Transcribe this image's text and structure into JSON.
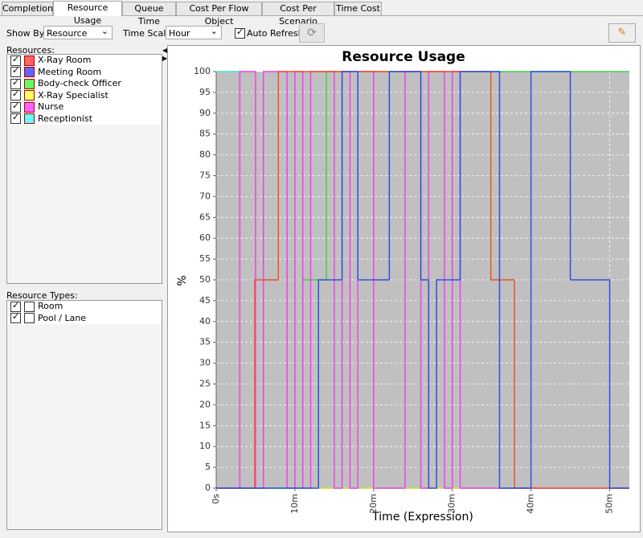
{
  "tabs": [
    "Completion",
    "Resource Usage",
    "Queue Time",
    "Cost Per Flow Object",
    "Cost Per Scenario",
    "Time Cost"
  ],
  "active_tab": 1,
  "toolbar": {
    "show_by_label": "Show By:",
    "show_by_value": "Resource",
    "time_scale_label": "Time Scale:",
    "time_scale_value": "Hour",
    "auto_refresh_label": "Auto Refresh",
    "auto_refresh_checked": true
  },
  "resources": {
    "label": "Resources:",
    "items": [
      {
        "name": "X-Ray Room",
        "color": "#ff6464",
        "checked": true
      },
      {
        "name": "Meeting Room",
        "color": "#6464ff",
        "checked": true
      },
      {
        "name": "Body-check Officer",
        "color": "#64ff64",
        "checked": true
      },
      {
        "name": "X-Ray Specialist",
        "color": "#ffff64",
        "checked": true
      },
      {
        "name": "Nurse",
        "color": "#ff64ff",
        "checked": true
      },
      {
        "name": "Receptionist",
        "color": "#64ffff",
        "checked": true
      }
    ]
  },
  "resource_types": {
    "label": "Resource Types:",
    "items": [
      {
        "name": "Room",
        "checked": true
      },
      {
        "name": "Pool / Lane",
        "checked": true
      }
    ]
  },
  "chart_data": {
    "type": "line",
    "title": "Resource Usage",
    "x_label": "Time (Expression)",
    "y_label": "%",
    "xlim": [
      0,
      52.5
    ],
    "ylim": [
      0,
      100
    ],
    "xticks": [
      {
        "value": 0,
        "label": "0s"
      },
      {
        "value": 10,
        "label": "10m"
      },
      {
        "value": 20,
        "label": "20m"
      },
      {
        "value": 30,
        "label": "30m"
      },
      {
        "value": 40,
        "label": "40m"
      },
      {
        "value": 50,
        "label": "50m"
      }
    ],
    "yticks": [
      0,
      5,
      10,
      15,
      20,
      25,
      30,
      35,
      40,
      45,
      50,
      55,
      60,
      65,
      70,
      75,
      80,
      85,
      90,
      95,
      100
    ],
    "grid": true,
    "series": [
      {
        "name": "Receptionist",
        "color": "#40e0e0",
        "x": [
          0,
          3,
          3,
          52.5
        ],
        "values": [
          100,
          100,
          0,
          0
        ]
      },
      {
        "name": "X-Ray Specialist",
        "color": "#e0e030",
        "x": [
          0,
          52.5
        ],
        "values": [
          0,
          0
        ]
      },
      {
        "name": "Body-check Officer",
        "color": "#40d040",
        "x": [
          0,
          11,
          11,
          14,
          14,
          52.5
        ],
        "values": [
          0,
          0,
          50,
          50,
          100,
          100
        ]
      },
      {
        "name": "Nurse",
        "color": "#f040f0",
        "x": [
          0,
          3,
          3,
          5,
          5,
          6,
          6,
          9,
          9,
          10,
          10,
          11,
          11,
          12,
          12,
          15,
          15,
          16,
          16,
          17,
          17,
          18,
          18,
          20,
          20,
          24,
          24,
          26,
          26,
          27,
          27,
          29,
          29,
          30,
          30,
          31,
          31,
          52.5
        ],
        "values": [
          0,
          0,
          100,
          100,
          0,
          0,
          100,
          100,
          0,
          0,
          100,
          100,
          0,
          0,
          100,
          100,
          0,
          0,
          100,
          100,
          0,
          0,
          100,
          100,
          0,
          0,
          100,
          100,
          0,
          0,
          100,
          100,
          0,
          0,
          100,
          100,
          0,
          0
        ]
      },
      {
        "name": "X-Ray Room",
        "color": "#f05030",
        "x": [
          0,
          4.9,
          4.9,
          7.9,
          7.9,
          34.9,
          34.9,
          37.9,
          37.9,
          52.5
        ],
        "values": [
          0,
          0,
          50,
          50,
          100,
          100,
          50,
          50,
          0,
          0
        ]
      },
      {
        "name": "Meeting Room",
        "color": "#3050e0",
        "x": [
          0,
          13,
          13,
          16,
          16,
          18,
          18,
          22,
          22,
          26,
          26,
          27,
          27,
          28,
          28,
          31,
          31,
          36,
          36,
          40,
          40,
          45,
          45,
          50,
          50,
          52.5
        ],
        "values": [
          0,
          0,
          50,
          50,
          100,
          100,
          50,
          50,
          100,
          100,
          50,
          50,
          0,
          0,
          50,
          50,
          100,
          100,
          0,
          0,
          100,
          100,
          50,
          50,
          0,
          0
        ]
      }
    ]
  }
}
